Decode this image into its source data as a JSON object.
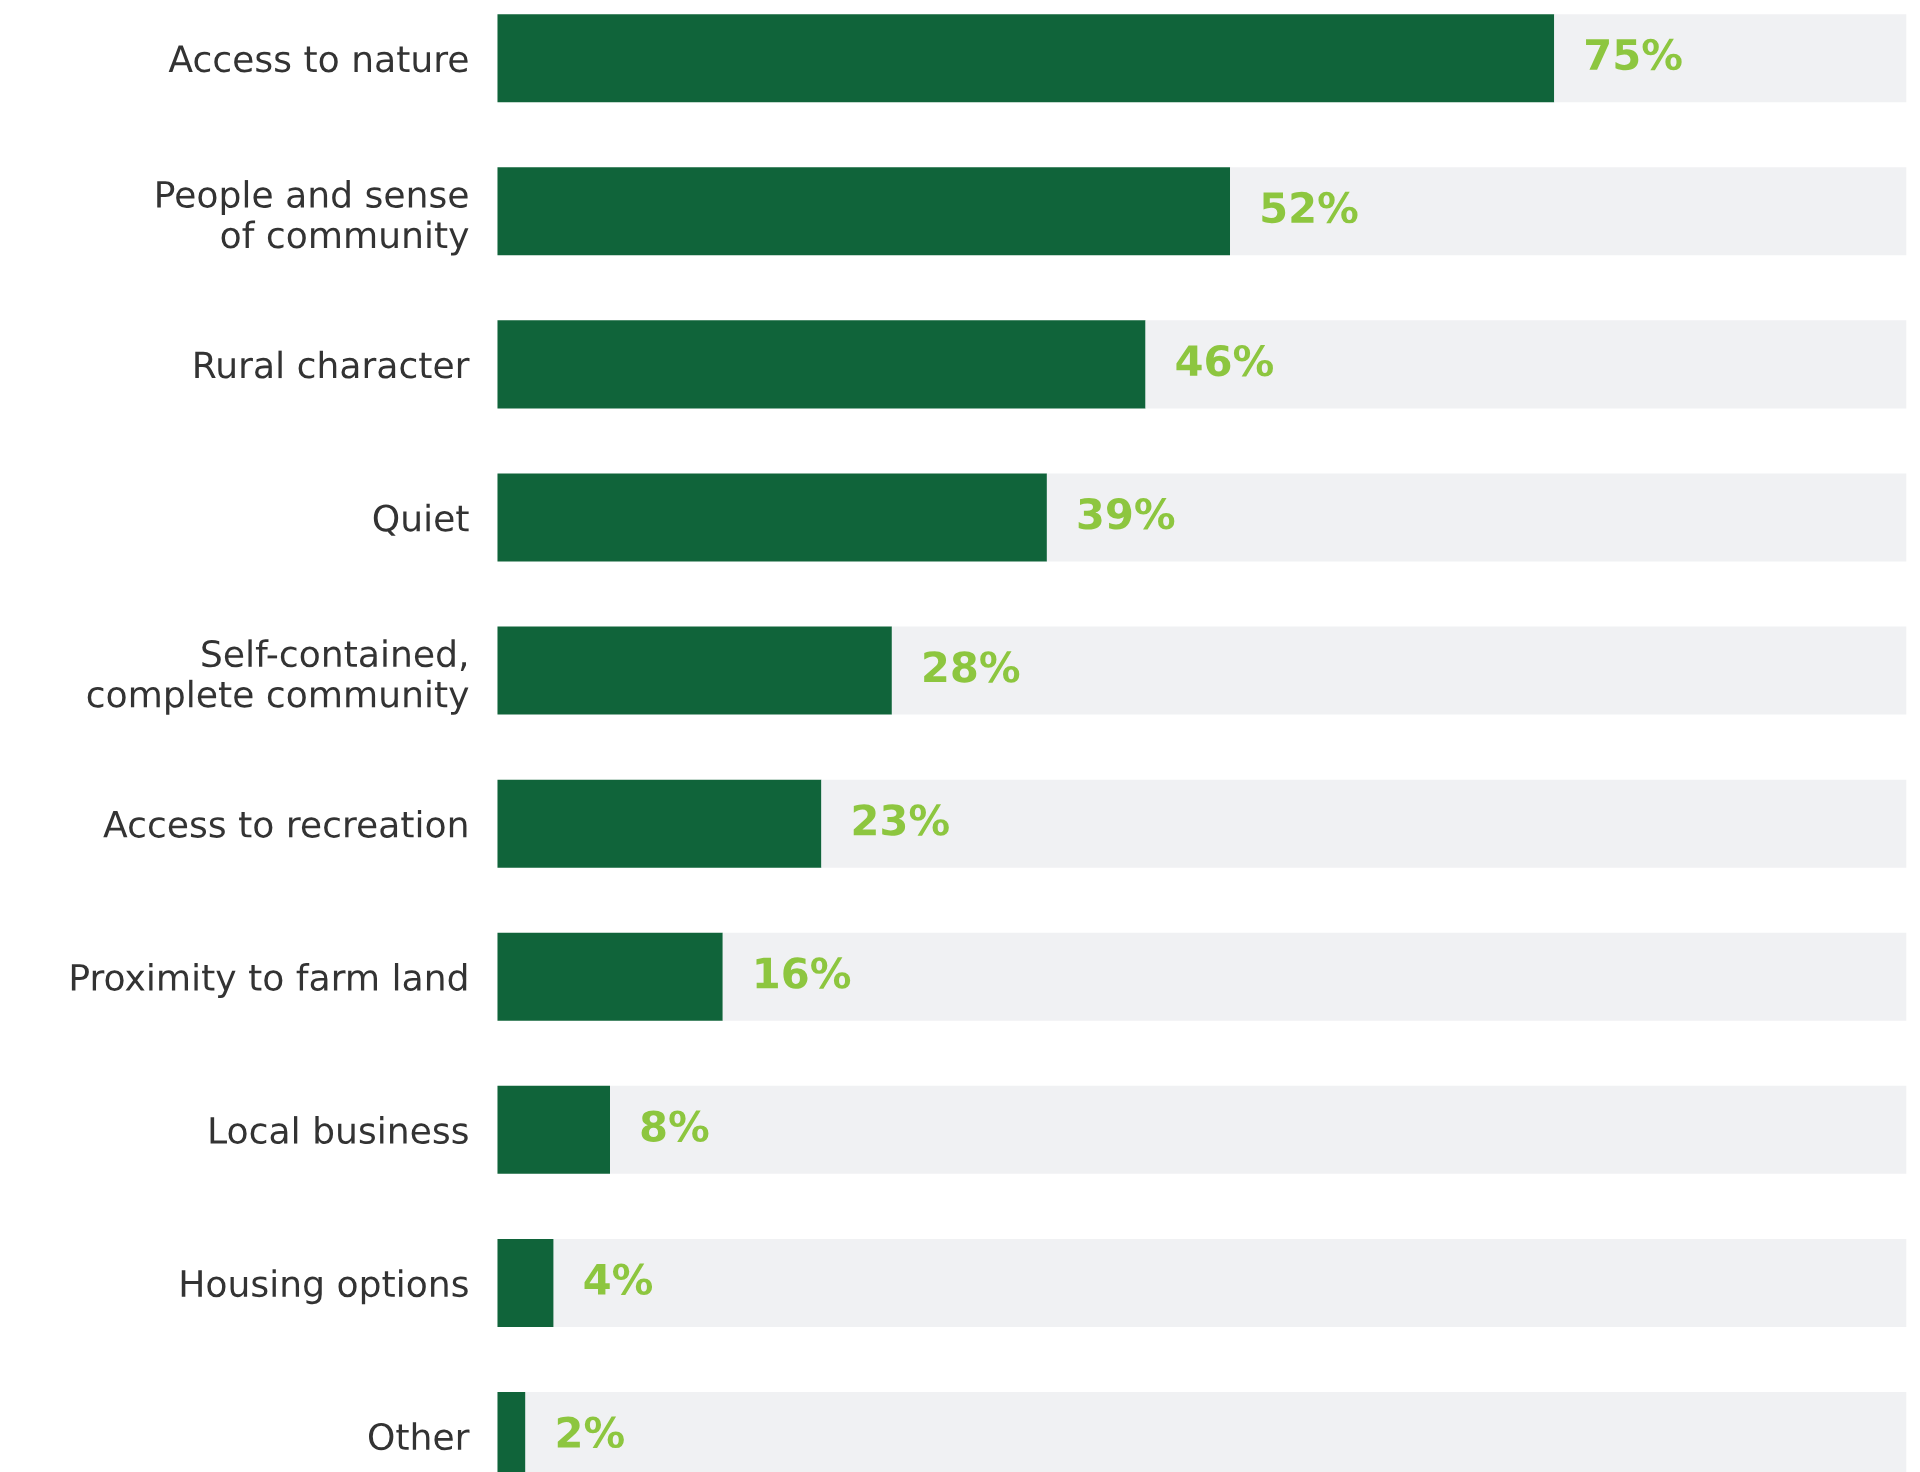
{
  "chart_data": {
    "type": "bar",
    "orientation": "horizontal",
    "stacked": true,
    "categories": [
      "Access to nature",
      "People and sense\nof community",
      "Rural character",
      "Quiet",
      "Self-contained,\ncomplete community",
      "Access to recreation",
      "Proximity to farm land",
      "Local business",
      "Housing options",
      "Other"
    ],
    "series": [
      {
        "color": "#10643a",
        "values": [
          75,
          52,
          46,
          39,
          28,
          23,
          16,
          8,
          4,
          2
        ],
        "value_labels": [
          "75%",
          "52%",
          "46%",
          "39%",
          "28%",
          "23%",
          "16%",
          "8%",
          "4%",
          "2%"
        ]
      },
      {
        "color": "#f0f1f3",
        "values": [
          25,
          48,
          54,
          61,
          72,
          77,
          84,
          92,
          96,
          98
        ]
      }
    ],
    "xlim": [
      0,
      100
    ],
    "tick_labels": "y",
    "grid": false,
    "legend": false
  }
}
